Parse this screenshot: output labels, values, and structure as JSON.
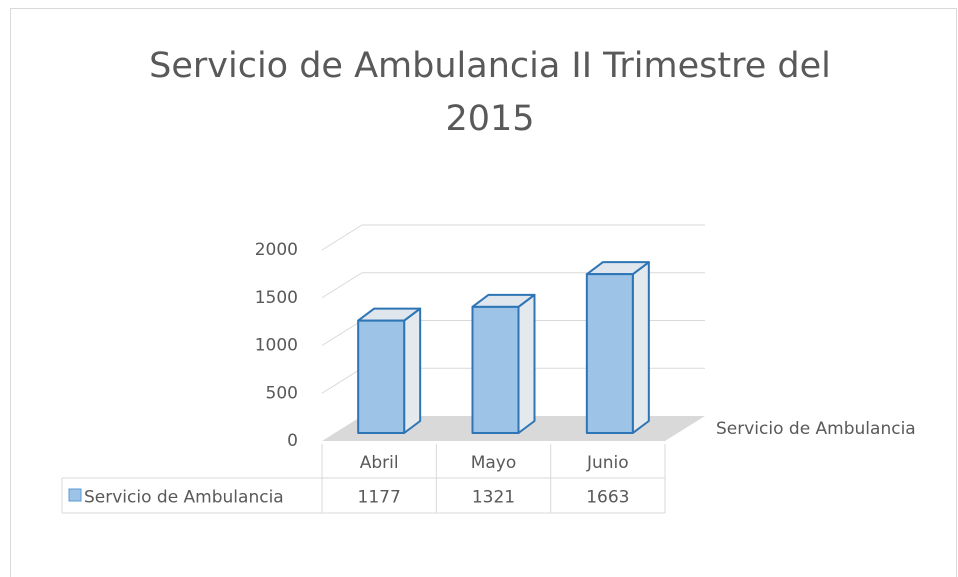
{
  "chart_data": {
    "type": "bar3d",
    "title": "Servicio de Ambulancia II Trimestre del 2015",
    "categories": [
      "Abril",
      "Mayo",
      "Junio"
    ],
    "series": [
      {
        "name": "Servicio de Ambulancia",
        "color": "#9dc3e6",
        "values": [
          1177,
          1321,
          1663
        ]
      }
    ],
    "ylim": [
      0,
      2000
    ],
    "yticks": [
      0,
      500,
      1000,
      1500,
      2000
    ],
    "grid": true,
    "data_table": true
  }
}
